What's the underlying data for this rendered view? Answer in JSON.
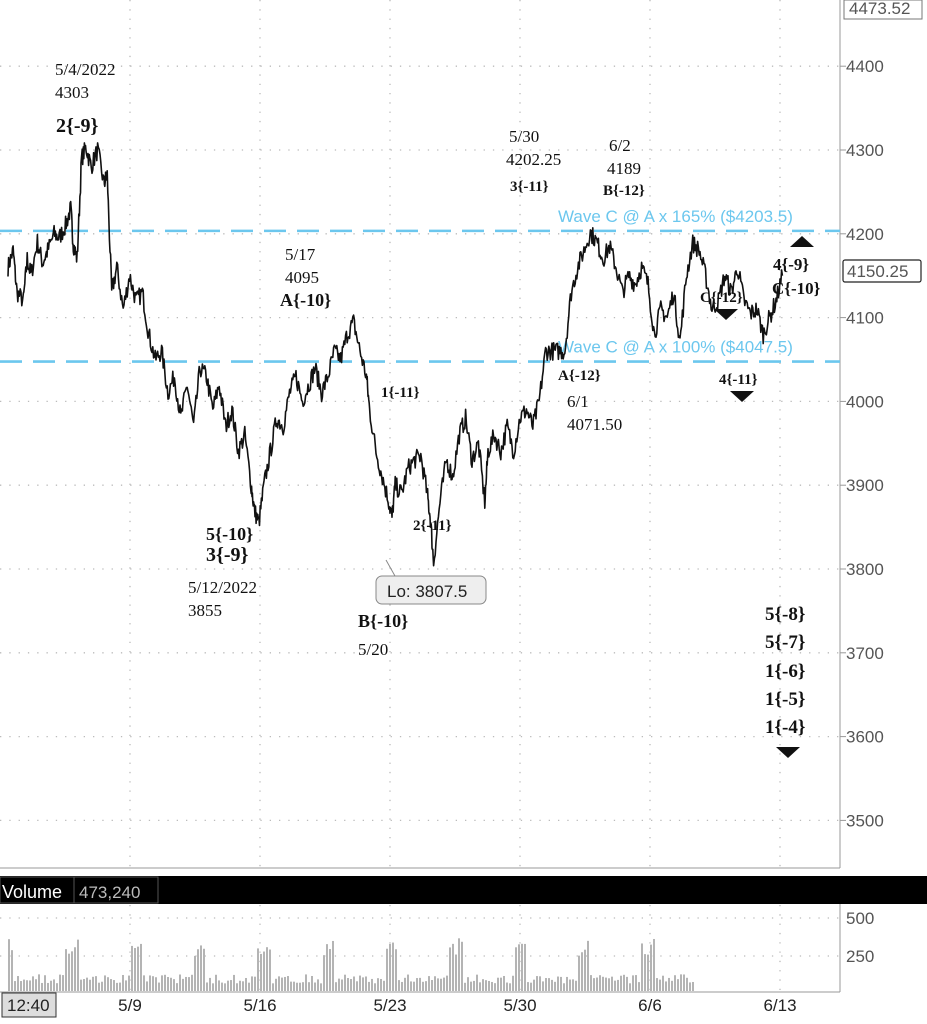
{
  "chart_data": {
    "type": "line",
    "title": "",
    "y_axis": {
      "ticks": [
        3500,
        3600,
        3700,
        3800,
        3900,
        4000,
        4100,
        4200,
        4300,
        4400
      ],
      "top_label": "4473.52",
      "ylim": [
        3440,
        4475
      ]
    },
    "x_axis": {
      "tick_labels": [
        "5/9",
        "5/16",
        "5/23",
        "5/30",
        "6/6",
        "6/13"
      ],
      "start_label": "12:40"
    },
    "current_price": "4150.25",
    "key_points": [
      {
        "date": "5/4",
        "price": 4303
      },
      {
        "date": "5/12",
        "price": 3855
      },
      {
        "date": "5/17",
        "price": 4095
      },
      {
        "date": "5/20",
        "price": 3807.5
      },
      {
        "date": "5/30",
        "price": 4202.25
      },
      {
        "date": "6/1",
        "price": 4071.5
      },
      {
        "date": "6/2",
        "price": 4189
      }
    ],
    "price_path": [
      [
        0,
        4160
      ],
      [
        0.08,
        4180
      ],
      [
        0.14,
        4130
      ],
      [
        0.24,
        4120
      ],
      [
        0.3,
        4170
      ],
      [
        0.36,
        4150
      ],
      [
        0.46,
        4190
      ],
      [
        0.54,
        4165
      ],
      [
        0.62,
        4180
      ],
      [
        0.72,
        4200
      ],
      [
        0.8,
        4195
      ],
      [
        0.9,
        4210
      ],
      [
        0.98,
        4230
      ],
      [
        1.02,
        4188
      ],
      [
        1.08,
        4170
      ],
      [
        1.15,
        4290
      ],
      [
        1.22,
        4303
      ],
      [
        1.3,
        4280
      ],
      [
        1.4,
        4300
      ],
      [
        1.5,
        4260
      ],
      [
        1.55,
        4270
      ],
      [
        1.62,
        4130
      ],
      [
        1.7,
        4160
      ],
      [
        1.8,
        4110
      ],
      [
        1.9,
        4150
      ],
      [
        2.0,
        4120
      ],
      [
        2.1,
        4130
      ],
      [
        2.2,
        4080
      ],
      [
        2.3,
        4050
      ],
      [
        2.4,
        4060
      ],
      [
        2.5,
        4010
      ],
      [
        2.6,
        4030
      ],
      [
        2.7,
        3980
      ],
      [
        2.8,
        4020
      ],
      [
        2.9,
        3970
      ],
      [
        3.0,
        4040
      ],
      [
        3.1,
        4030
      ],
      [
        3.2,
        3990
      ],
      [
        3.3,
        4020
      ],
      [
        3.4,
        3970
      ],
      [
        3.5,
        3990
      ],
      [
        3.6,
        3940
      ],
      [
        3.7,
        3960
      ],
      [
        3.8,
        3900
      ],
      [
        3.85,
        3870
      ],
      [
        3.92,
        3855
      ],
      [
        4.0,
        3900
      ],
      [
        4.1,
        3940
      ],
      [
        4.2,
        3980
      ],
      [
        4.3,
        3970
      ],
      [
        4.4,
        4010
      ],
      [
        4.5,
        4030
      ],
      [
        4.6,
        4000
      ],
      [
        4.7,
        4020
      ],
      [
        4.8,
        4040
      ],
      [
        4.9,
        4010
      ],
      [
        5.0,
        4030
      ],
      [
        5.1,
        4060
      ],
      [
        5.2,
        4050
      ],
      [
        5.3,
        4080
      ],
      [
        5.4,
        4095
      ],
      [
        5.5,
        4060
      ],
      [
        5.6,
        4030
      ],
      [
        5.65,
        3990
      ],
      [
        5.75,
        3940
      ],
      [
        5.85,
        3910
      ],
      [
        5.95,
        3880
      ],
      [
        6.0,
        3862
      ],
      [
        6.05,
        3900
      ],
      [
        6.15,
        3890
      ],
      [
        6.25,
        3920
      ],
      [
        6.35,
        3930
      ],
      [
        6.45,
        3935
      ],
      [
        6.55,
        3890
      ],
      [
        6.6,
        3860
      ],
      [
        6.65,
        3808
      ],
      [
        6.75,
        3880
      ],
      [
        6.85,
        3930
      ],
      [
        6.95,
        3910
      ],
      [
        7.05,
        3960
      ],
      [
        7.15,
        3980
      ],
      [
        7.25,
        3930
      ],
      [
        7.35,
        3950
      ],
      [
        7.45,
        3880
      ],
      [
        7.5,
        3940
      ],
      [
        7.6,
        3960
      ],
      [
        7.7,
        3940
      ],
      [
        7.8,
        3970
      ],
      [
        7.9,
        3940
      ],
      [
        8.0,
        3980
      ],
      [
        8.1,
        3990
      ],
      [
        8.2,
        3970
      ],
      [
        8.3,
        4000
      ],
      [
        8.4,
        4060
      ],
      [
        8.5,
        4060
      ],
      [
        8.6,
        4060
      ],
      [
        8.7,
        4060
      ],
      [
        8.8,
        4130
      ],
      [
        8.9,
        4160
      ],
      [
        9.0,
        4180
      ],
      [
        9.1,
        4202
      ],
      [
        9.2,
        4190
      ],
      [
        9.3,
        4170
      ],
      [
        9.4,
        4185
      ],
      [
        9.5,
        4160
      ],
      [
        9.6,
        4130
      ],
      [
        9.7,
        4150
      ],
      [
        9.8,
        4140
      ],
      [
        9.9,
        4160
      ],
      [
        10.0,
        4140
      ],
      [
        10.1,
        4080
      ],
      [
        10.2,
        4110
      ],
      [
        10.3,
        4100
      ],
      [
        10.4,
        4130
      ],
      [
        10.5,
        4072
      ],
      [
        10.6,
        4150
      ],
      [
        10.7,
        4189
      ],
      [
        10.8,
        4180
      ],
      [
        10.9,
        4150
      ],
      [
        11.0,
        4110
      ],
      [
        11.1,
        4120
      ],
      [
        11.2,
        4150
      ],
      [
        11.3,
        4130
      ],
      [
        11.4,
        4160
      ],
      [
        11.5,
        4120
      ],
      [
        11.6,
        4105
      ],
      [
        11.7,
        4110
      ],
      [
        11.8,
        4080
      ],
      [
        11.9,
        4100
      ],
      [
        12.0,
        4120
      ],
      [
        12.1,
        4150
      ]
    ],
    "horizontal_levels": [
      {
        "price": 4203.5,
        "label": "Wave C @ A x 165% ($4203.5)"
      },
      {
        "price": 4047.5,
        "label": "Wave C @ A x 100% ($4047.5)"
      }
    ],
    "lo_callout": "Lo: 3807.5",
    "annotations": [
      {
        "lines": [
          "5/4/2022",
          "4303"
        ],
        "wave": "2{-9}"
      },
      {
        "lines": [
          "5/12/2022",
          "3855"
        ],
        "wave": "5{-10} 3{-9}"
      },
      {
        "lines": [
          "5/17",
          "4095"
        ],
        "wave": "A{-10}"
      },
      {
        "lines": [
          "5/20"
        ],
        "wave": "B{-10}"
      },
      {
        "lines": [
          "5/30",
          "4202.25"
        ],
        "wave": "3{-11}"
      },
      {
        "lines": [
          "6/1",
          "4071.50"
        ],
        "wave": "A{-12}"
      },
      {
        "lines": [
          "6/2",
          "4189"
        ],
        "wave": "B{-12}"
      }
    ],
    "labels": {
      "a_5_4_date": "5/4/2022",
      "a_5_4_price": "4303",
      "a_5_4_wave": "2{-9}",
      "a_5_12_wave1": "5{-10}",
      "a_5_12_wave2": "3{-9}",
      "a_5_12_date": "5/12/2022",
      "a_5_12_price": "3855",
      "a_5_17_date": "5/17",
      "a_5_17_price": "4095",
      "a_5_17_wave": "A{-10}",
      "a_1_11": "1{-11}",
      "a_2_11": "2{-11}",
      "a_5_20_wave": "B{-10}",
      "a_5_20_date": "5/20",
      "a_5_30_date": "5/30",
      "a_5_30_price": "4202.25",
      "a_5_30_wave": "3{-11}",
      "a_6_2_date": "6/2",
      "a_6_2_price": "4189",
      "a_6_2_wave": "B{-12}",
      "a_6_1_wave": "A{-12}",
      "a_6_1_date": "6/1",
      "a_6_1_price": "4071.50",
      "t_c12": "C{-12}",
      "t_4_11": "4{-11}",
      "t_4_9": "4{-9}",
      "t_c10": "C{-10}",
      "stack": [
        "5{-8}",
        "5{-7}",
        "1{-6}",
        "1{-5}",
        "1{-4}"
      ]
    },
    "volume": {
      "label": "Volume",
      "value": "473,240",
      "ticks": [
        "500",
        "250"
      ]
    }
  }
}
